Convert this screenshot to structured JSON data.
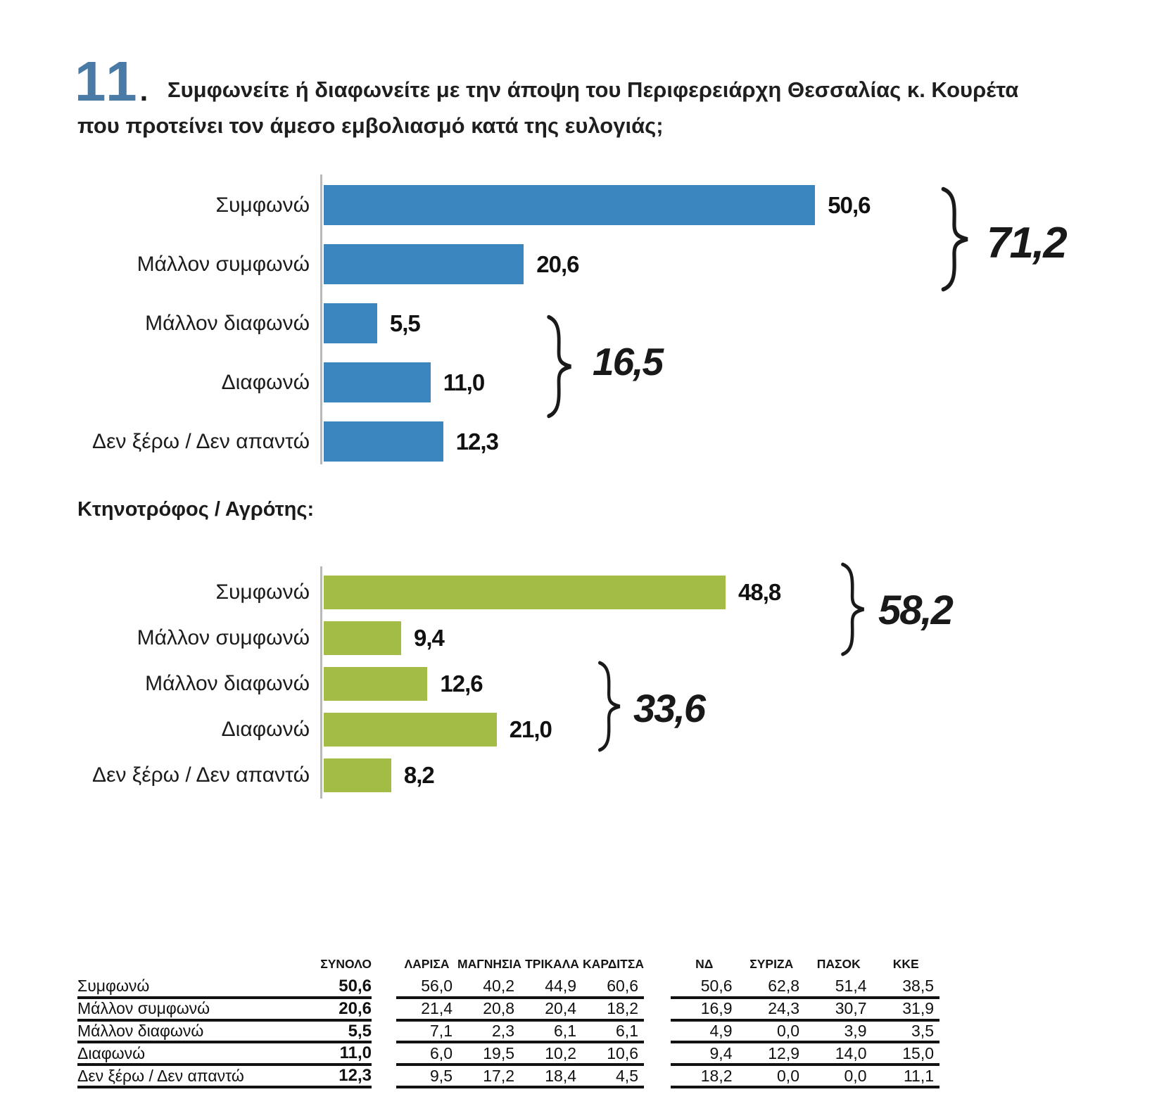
{
  "header": {
    "number": "11",
    "dot": ".",
    "title": "Συμφωνείτε ή διαφωνείτε με την άποψη του Περιφερειάρχη Θεσσαλίας κ. Κουρέτα που προτείνει τον άμεσο εμβολιασμό κατά της ευλογιάς;"
  },
  "section2_label": "Κτηνοτρόφος / Αγρότης:",
  "colors": {
    "bar_blue": "#3c86bf",
    "bar_green": "#a2bc45",
    "number_blue": "#4a7aa6",
    "axis_gray": "#b9b9b9"
  },
  "charts": [
    {
      "name": "total",
      "bars": [
        {
          "label": "Συμφωνώ",
          "value": "50,6"
        },
        {
          "label": "Μάλλον συμφωνώ",
          "value": "20,6"
        },
        {
          "label": "Μάλλον διαφωνώ",
          "value": "5,5"
        },
        {
          "label": "Διαφωνώ",
          "value": "11,0"
        },
        {
          "label": "Δεν ξέρω / Δεν απαντώ",
          "value": "12,3"
        }
      ],
      "groups": [
        {
          "label": "71,2"
        },
        {
          "label": "16,5"
        }
      ]
    },
    {
      "name": "farmers",
      "bars": [
        {
          "label": "Συμφωνώ",
          "value": "48,8"
        },
        {
          "label": "Μάλλον συμφωνώ",
          "value": "9,4"
        },
        {
          "label": "Μάλλον διαφωνώ",
          "value": "12,6"
        },
        {
          "label": "Διαφωνώ",
          "value": "21,0"
        },
        {
          "label": "Δεν ξέρω / Δεν απαντώ",
          "value": "8,2"
        }
      ],
      "groups": [
        {
          "label": "58,2"
        },
        {
          "label": "33,6"
        }
      ]
    }
  ],
  "table": {
    "headers": {
      "total": "ΣΥΝΟΛΟ",
      "regions": [
        "ΛΑΡΙΣΑ",
        "ΜΑΓΝΗΣΙΑ",
        "ΤΡΙΚΑΛΑ",
        "ΚΑΡΔΙΤΣΑ"
      ],
      "parties": [
        "ΝΔ",
        "ΣΥΡΙΖΑ",
        "ΠΑΣΟΚ",
        "ΚΚΕ"
      ]
    },
    "rows": [
      {
        "label": "Συμφωνώ",
        "total": "50,6",
        "regions": [
          "56,0",
          "40,2",
          "44,9",
          "60,6"
        ],
        "parties": [
          "50,6",
          "62,8",
          "51,4",
          "38,5"
        ]
      },
      {
        "label": "Μάλλον συμφωνώ",
        "total": "20,6",
        "regions": [
          "21,4",
          "20,8",
          "20,4",
          "18,2"
        ],
        "parties": [
          "16,9",
          "24,3",
          "30,7",
          "31,9"
        ]
      },
      {
        "label": "Μάλλον διαφωνώ",
        "total": "5,5",
        "regions": [
          "7,1",
          "2,3",
          "6,1",
          "6,1"
        ],
        "parties": [
          "4,9",
          "0,0",
          "3,9",
          "3,5"
        ]
      },
      {
        "label": "Διαφωνώ",
        "total": "11,0",
        "regions": [
          "6,0",
          "19,5",
          "10,2",
          "10,6"
        ],
        "parties": [
          "9,4",
          "12,9",
          "14,0",
          "15,0"
        ]
      },
      {
        "label": "Δεν ξέρω / Δεν απαντώ",
        "total": "12,3",
        "regions": [
          "9,5",
          "17,2",
          "18,4",
          "4,5"
        ],
        "parties": [
          "18,2",
          "0,0",
          "0,0",
          "11,1"
        ]
      }
    ]
  },
  "chart_data": [
    {
      "type": "bar",
      "orientation": "horizontal",
      "title": "Σύνολο",
      "categories": [
        "Συμφωνώ",
        "Μάλλον συμφωνώ",
        "Μάλλον διαφωνώ",
        "Διαφωνώ",
        "Δεν ξέρω / Δεν απαντώ"
      ],
      "values": [
        50.6,
        20.6,
        5.5,
        11.0,
        12.3
      ],
      "xlim": [
        0,
        55
      ],
      "bar_color": "#3c86bf",
      "grid": false,
      "annotations": [
        {
          "label": "71,2",
          "value": 71.2,
          "covers": [
            "Συμφωνώ",
            "Μάλλον συμφωνώ"
          ]
        },
        {
          "label": "16,5",
          "value": 16.5,
          "covers": [
            "Μάλλον διαφωνώ",
            "Διαφωνώ"
          ]
        }
      ]
    },
    {
      "type": "bar",
      "orientation": "horizontal",
      "title": "Κτηνοτρόφος / Αγρότης",
      "categories": [
        "Συμφωνώ",
        "Μάλλον συμφωνώ",
        "Μάλλον διαφωνώ",
        "Διαφωνώ",
        "Δεν ξέρω / Δεν απαντώ"
      ],
      "values": [
        48.8,
        9.4,
        12.6,
        21.0,
        8.2
      ],
      "xlim": [
        0,
        55
      ],
      "bar_color": "#a2bc45",
      "grid": false,
      "annotations": [
        {
          "label": "58,2",
          "value": 58.2,
          "covers": [
            "Συμφωνώ",
            "Μάλλον συμφωνώ"
          ]
        },
        {
          "label": "33,6",
          "value": 33.6,
          "covers": [
            "Μάλλον διαφωνώ",
            "Διαφωνώ"
          ]
        }
      ]
    },
    {
      "type": "table",
      "columns": [
        "",
        "ΣΥΝΟΛΟ",
        "ΛΑΡΙΣΑ",
        "ΜΑΓΝΗΣΙΑ",
        "ΤΡΙΚΑΛΑ",
        "ΚΑΡΔΙΤΣΑ",
        "ΝΔ",
        "ΣΥΡΙΖΑ",
        "ΠΑΣΟΚ",
        "ΚΚΕ"
      ],
      "rows": [
        [
          "Συμφωνώ",
          50.6,
          56.0,
          40.2,
          44.9,
          60.6,
          50.6,
          62.8,
          51.4,
          38.5
        ],
        [
          "Μάλλον συμφωνώ",
          20.6,
          21.4,
          20.8,
          20.4,
          18.2,
          16.9,
          24.3,
          30.7,
          31.9
        ],
        [
          "Μάλλον διαφωνώ",
          5.5,
          7.1,
          2.3,
          6.1,
          6.1,
          4.9,
          0.0,
          3.9,
          3.5
        ],
        [
          "Διαφωνώ",
          11.0,
          6.0,
          19.5,
          10.2,
          10.6,
          9.4,
          12.9,
          14.0,
          15.0
        ],
        [
          "Δεν ξέρω / Δεν απαντώ",
          12.3,
          9.5,
          17.2,
          18.4,
          4.5,
          18.2,
          0.0,
          0.0,
          11.1
        ]
      ]
    }
  ]
}
